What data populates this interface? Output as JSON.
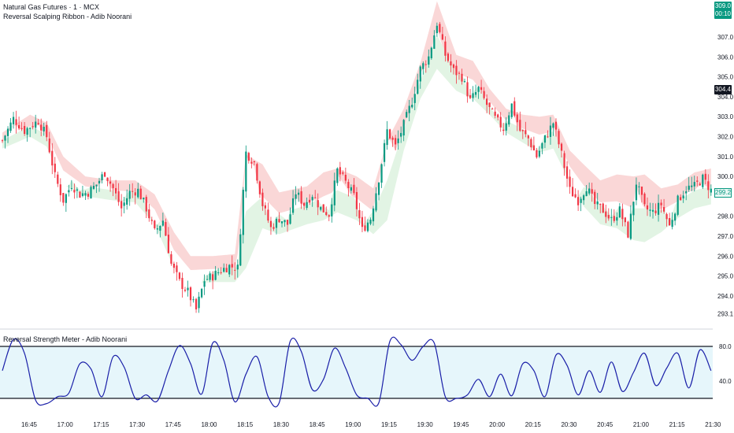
{
  "header": {
    "title": "Natural Gas Futures · 1 · MCX",
    "subtitle": "Reversal Scalping Ribbon - Adib Noorani",
    "oscillator_title": "Reversal Strength Meter - Adib Noorani"
  },
  "price_tags": {
    "last_price": "309.0",
    "countdown": "00:10",
    "mid_label": "304.4",
    "band_label": "299.2"
  },
  "colors": {
    "up": "#089981",
    "down": "#f23645",
    "ribbon_top": "#f8caca",
    "ribbon_bottom": "#d5efd9",
    "oscillator_line": "#1a1fa8",
    "oscillator_band": "#e6f6fb",
    "threshold_line": "#131722"
  },
  "chart_data": [
    {
      "type": "candlestick",
      "title": "Natural Gas Futures · 1 · MCX",
      "y_ticks": [
        "307.0",
        "306.0",
        "305.0",
        "304.0",
        "303.0",
        "302.0",
        "301.0",
        "300.0",
        "298.0",
        "297.0",
        "296.0",
        "295.0",
        "294.0",
        "293.1"
      ],
      "x_ticks": [
        "16:45",
        "17:00",
        "17:15",
        "17:30",
        "17:45",
        "18:00",
        "18:15",
        "18:30",
        "18:45",
        "19:00",
        "19:15",
        "19:30",
        "19:45",
        "20:00",
        "20:15",
        "20:30",
        "20:45",
        "21:00",
        "21:15",
        "21:30"
      ],
      "ylim": [
        293.1,
        309.0
      ],
      "close_path": [
        [
          0,
          301.8
        ],
        [
          4,
          302.9
        ],
        [
          8,
          302.3
        ],
        [
          11,
          302.6
        ],
        [
          13,
          302.8
        ],
        [
          16,
          302.0
        ],
        [
          19,
          300.0
        ],
        [
          22,
          298.8
        ],
        [
          25,
          299.6
        ],
        [
          28,
          299.1
        ],
        [
          31,
          299.2
        ],
        [
          34,
          299.6
        ],
        [
          37,
          300.2
        ],
        [
          40,
          299.4
        ],
        [
          43,
          298.4
        ],
        [
          46,
          299.2
        ],
        [
          49,
          299.3
        ],
        [
          52,
          298.4
        ],
        [
          55,
          297.2
        ],
        [
          58,
          297.8
        ],
        [
          61,
          295.6
        ],
        [
          64,
          294.7
        ],
        [
          67,
          294.2
        ],
        [
          70,
          293.3
        ],
        [
          73,
          294.8
        ],
        [
          76,
          295.0
        ],
        [
          79,
          295.3
        ],
        [
          82,
          295.5
        ],
        [
          85,
          295.4
        ],
        [
          88,
          301.2
        ],
        [
          91,
          300.7
        ],
        [
          94,
          298.6
        ],
        [
          97,
          297.4
        ],
        [
          100,
          297.9
        ],
        [
          103,
          297.6
        ],
        [
          106,
          299.2
        ],
        [
          109,
          298.6
        ],
        [
          112,
          299.1
        ],
        [
          115,
          298.4
        ],
        [
          118,
          298.1
        ],
        [
          121,
          300.3
        ],
        [
          124,
          299.7
        ],
        [
          127,
          299.0
        ],
        [
          130,
          297.3
        ],
        [
          133,
          297.9
        ],
        [
          136,
          299.9
        ],
        [
          139,
          302.3
        ],
        [
          142,
          301.5
        ],
        [
          145,
          302.6
        ],
        [
          148,
          303.8
        ],
        [
          151,
          305.4
        ],
        [
          154,
          306.0
        ],
        [
          157,
          307.7
        ],
        [
          160,
          306.1
        ],
        [
          163,
          305.3
        ],
        [
          166,
          305.0
        ],
        [
          169,
          303.8
        ],
        [
          172,
          304.4
        ],
        [
          175,
          303.6
        ],
        [
          178,
          302.9
        ],
        [
          181,
          302.4
        ],
        [
          184,
          303.6
        ],
        [
          187,
          302.3
        ],
        [
          190,
          301.9
        ],
        [
          193,
          301.0
        ],
        [
          196,
          301.9
        ],
        [
          199,
          302.7
        ],
        [
          202,
          301.1
        ],
        [
          205,
          299.3
        ],
        [
          208,
          298.8
        ],
        [
          211,
          299.5
        ],
        [
          214,
          298.6
        ],
        [
          217,
          298.3
        ],
        [
          220,
          297.8
        ],
        [
          223,
          298.3
        ],
        [
          226,
          297.1
        ],
        [
          229,
          299.7
        ],
        [
          232,
          298.4
        ],
        [
          235,
          298.2
        ],
        [
          238,
          298.6
        ],
        [
          241,
          297.5
        ],
        [
          244,
          298.8
        ],
        [
          247,
          299.4
        ],
        [
          250,
          299.5
        ],
        [
          253,
          299.9
        ],
        [
          256,
          299.3
        ]
      ],
      "ribbon_upper_path": [
        [
          0,
          302.2
        ],
        [
          10,
          303.1
        ],
        [
          16,
          302.7
        ],
        [
          22,
          301.0
        ],
        [
          30,
          300.0
        ],
        [
          40,
          299.8
        ],
        [
          48,
          299.8
        ],
        [
          55,
          299.1
        ],
        [
          62,
          297.2
        ],
        [
          68,
          296.0
        ],
        [
          76,
          296.0
        ],
        [
          84,
          296.1
        ],
        [
          88,
          301.1
        ],
        [
          94,
          300.6
        ],
        [
          100,
          299.2
        ],
        [
          110,
          299.5
        ],
        [
          116,
          300.2
        ],
        [
          121,
          300.4
        ],
        [
          128,
          300.0
        ],
        [
          134,
          299.4
        ],
        [
          139,
          301.8
        ],
        [
          145,
          303.4
        ],
        [
          151,
          305.7
        ],
        [
          157,
          308.8
        ],
        [
          164,
          306.1
        ],
        [
          170,
          305.8
        ],
        [
          176,
          304.4
        ],
        [
          182,
          303.4
        ],
        [
          188,
          303.1
        ],
        [
          194,
          303.0
        ],
        [
          199,
          303.1
        ],
        [
          205,
          301.3
        ],
        [
          210,
          300.6
        ],
        [
          216,
          299.8
        ],
        [
          222,
          300.1
        ],
        [
          228,
          300.0
        ],
        [
          232,
          300.1
        ],
        [
          238,
          299.4
        ],
        [
          244,
          299.6
        ],
        [
          250,
          300.2
        ],
        [
          256,
          300.4
        ]
      ],
      "ribbon_lower_path": [
        [
          0,
          301.4
        ],
        [
          10,
          302.0
        ],
        [
          16,
          301.5
        ],
        [
          22,
          299.6
        ],
        [
          30,
          299.0
        ],
        [
          40,
          298.8
        ],
        [
          48,
          298.7
        ],
        [
          55,
          297.6
        ],
        [
          62,
          295.4
        ],
        [
          68,
          294.6
        ],
        [
          76,
          294.7
        ],
        [
          84,
          294.7
        ],
        [
          88,
          295.4
        ],
        [
          94,
          297.4
        ],
        [
          100,
          297.1
        ],
        [
          110,
          297.6
        ],
        [
          116,
          297.8
        ],
        [
          121,
          298.2
        ],
        [
          128,
          297.8
        ],
        [
          134,
          297.1
        ],
        [
          139,
          297.8
        ],
        [
          145,
          301.3
        ],
        [
          151,
          303.9
        ],
        [
          157,
          305.4
        ],
        [
          164,
          304.3
        ],
        [
          170,
          303.9
        ],
        [
          176,
          303.1
        ],
        [
          182,
          302.2
        ],
        [
          188,
          301.7
        ],
        [
          194,
          301.2
        ],
        [
          199,
          301.4
        ],
        [
          205,
          299.7
        ],
        [
          210,
          298.5
        ],
        [
          216,
          297.6
        ],
        [
          222,
          297.4
        ],
        [
          228,
          296.8
        ],
        [
          232,
          296.7
        ],
        [
          238,
          297.2
        ],
        [
          244,
          297.9
        ],
        [
          250,
          298.4
        ],
        [
          256,
          298.6
        ]
      ]
    },
    {
      "type": "line",
      "title": "Reversal Strength Meter - Adib Noorani",
      "y_ticks": [
        "80.0",
        "40.0"
      ],
      "ylim": [
        0,
        100
      ],
      "thresholds": [
        80,
        20
      ],
      "x": [
        0,
        4,
        8,
        12,
        16,
        20,
        24,
        28,
        32,
        36,
        40,
        44,
        48,
        52,
        56,
        60,
        64,
        68,
        72,
        76,
        80,
        84,
        88,
        92,
        96,
        100,
        104,
        108,
        112,
        116,
        120,
        124,
        128,
        132,
        136,
        140,
        144,
        148,
        152,
        156,
        160,
        164,
        168,
        172,
        176,
        180,
        184,
        188,
        192,
        196,
        200,
        204,
        208,
        212,
        216,
        220,
        224,
        228,
        232,
        236,
        240,
        244,
        248,
        252,
        256
      ],
      "values": [
        52,
        88,
        72,
        18,
        14,
        22,
        26,
        60,
        54,
        22,
        68,
        56,
        20,
        24,
        17,
        52,
        81,
        60,
        25,
        84,
        64,
        16,
        48,
        68,
        22,
        15,
        86,
        74,
        30,
        42,
        78,
        55,
        24,
        20,
        15,
        86,
        82,
        64,
        80,
        84,
        22,
        20,
        24,
        42,
        22,
        48,
        23,
        60,
        52,
        22,
        70,
        58,
        24,
        52,
        27,
        62,
        28,
        50,
        72,
        35,
        55,
        72,
        32,
        76,
        52
      ]
    }
  ]
}
